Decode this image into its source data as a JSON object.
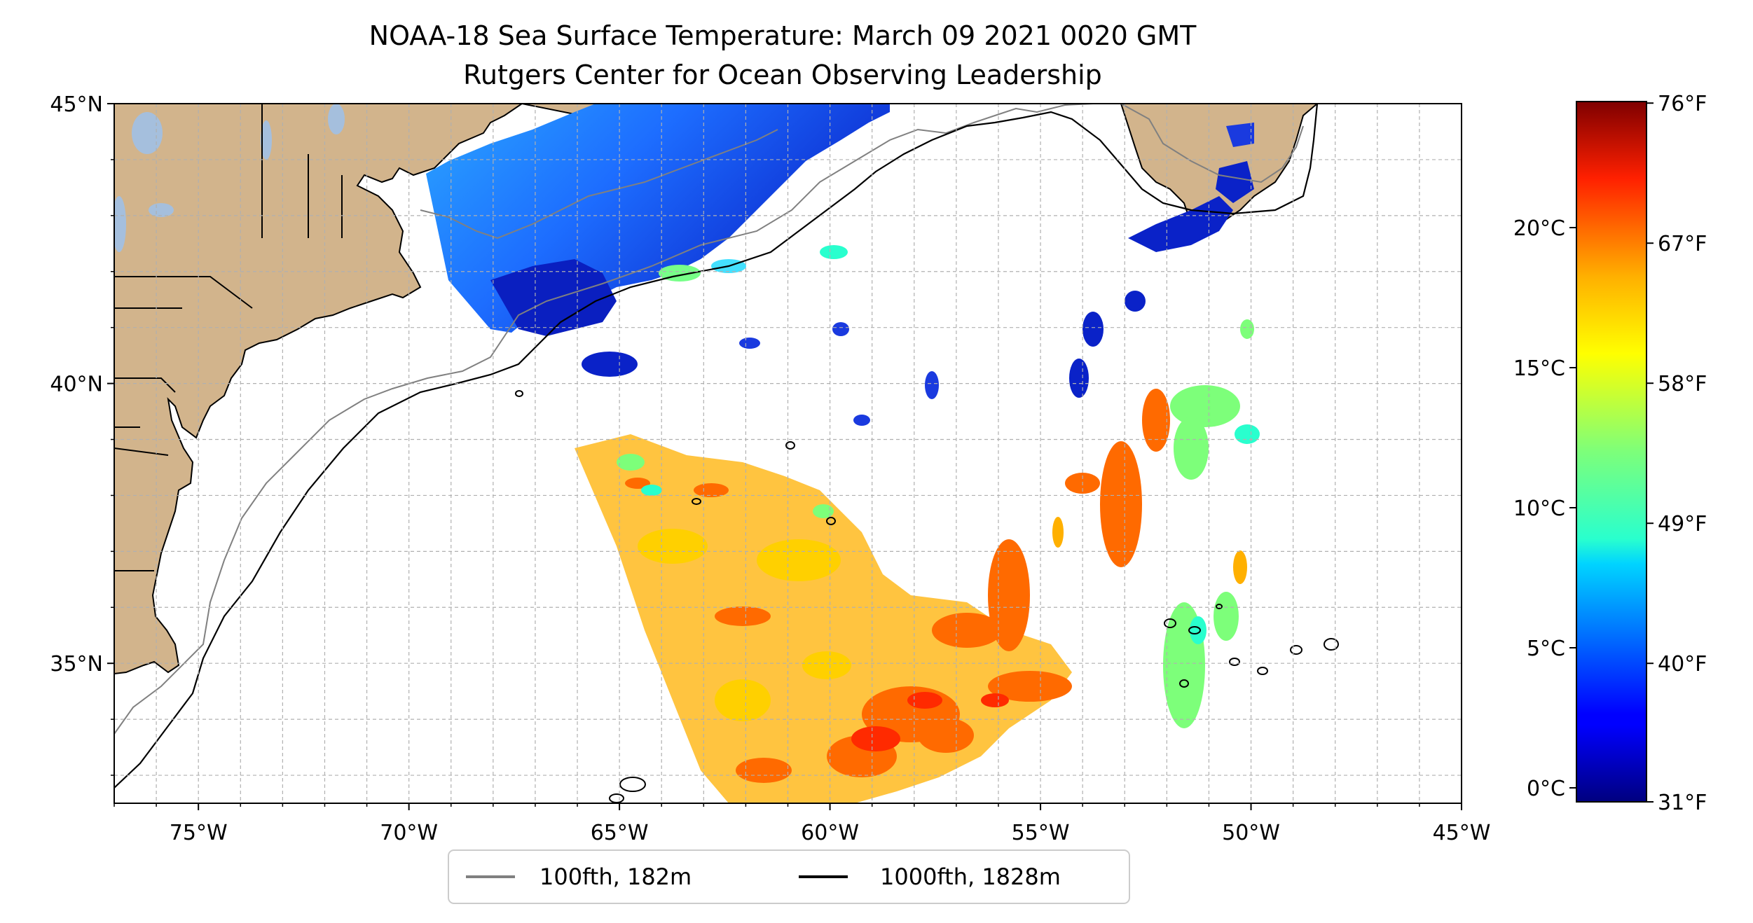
{
  "figure": {
    "title_line1": "NOAA-18 Sea Surface Temperature: March 09 2021 0020 GMT",
    "title_line2": "Rutgers Center for Ocean Observing Leadership"
  },
  "map": {
    "lon_range": [
      -77,
      -45
    ],
    "lat_range": [
      32.5,
      45
    ],
    "lon_ticks": [
      {
        "value": -75,
        "label": "75°W"
      },
      {
        "value": -70,
        "label": "70°W"
      },
      {
        "value": -65,
        "label": "65°W"
      },
      {
        "value": -60,
        "label": "60°W"
      },
      {
        "value": -55,
        "label": "55°W"
      },
      {
        "value": -50,
        "label": "50°W"
      },
      {
        "value": -45,
        "label": "45°W"
      }
    ],
    "lat_ticks": [
      {
        "value": 45,
        "label": "45°N"
      },
      {
        "value": 40,
        "label": "40°N"
      },
      {
        "value": 35,
        "label": "35°N"
      }
    ],
    "minor_grid_step_deg": 1,
    "grid": true,
    "land_color": "#d2b48c",
    "lake_color": "#a5bfdd",
    "ocean_color": "#ffffff"
  },
  "legend": {
    "location": "bottom-center, below map",
    "entries": [
      {
        "label": "100fth, 182m",
        "color": "#808080"
      },
      {
        "label": "1000fth, 1828m",
        "color": "#000000"
      }
    ]
  },
  "colorbar": {
    "colormap": "jet",
    "range_c": [
      -0.5,
      24.5
    ],
    "celsius_ticks": [
      {
        "value": 0,
        "label": "0°C"
      },
      {
        "value": 5,
        "label": "5°C"
      },
      {
        "value": 10,
        "label": "10°C"
      },
      {
        "value": 15,
        "label": "15°C"
      },
      {
        "value": 20,
        "label": "20°C"
      }
    ],
    "fahrenheit_ticks": [
      {
        "value": 31,
        "label": "31°F"
      },
      {
        "value": 40,
        "label": "40°F"
      },
      {
        "value": 49,
        "label": "49°F"
      },
      {
        "value": 58,
        "label": "58°F"
      },
      {
        "value": 67,
        "label": "67°F"
      },
      {
        "value": 76,
        "label": "76°F"
      }
    ]
  }
}
